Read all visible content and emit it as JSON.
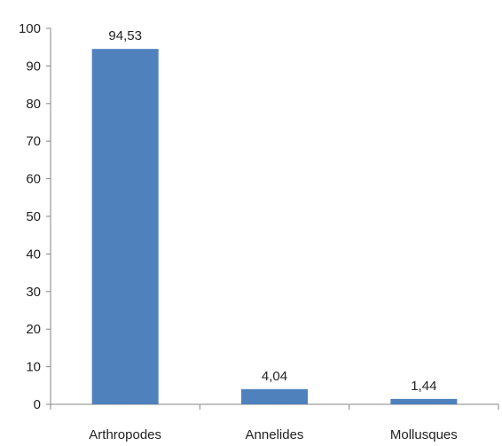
{
  "chart_data": {
    "type": "bar",
    "categories": [
      "Arthropodes",
      "Annelides",
      "Mollusques"
    ],
    "values": [
      94.53,
      4.04,
      1.44
    ],
    "data_labels": [
      "94,53",
      "4,04",
      "1,44"
    ],
    "title": "",
    "xlabel": "",
    "ylabel": "",
    "ylim": [
      0,
      100
    ],
    "yticks": [
      0,
      10,
      20,
      30,
      40,
      50,
      60,
      70,
      80,
      90,
      100
    ],
    "grid": false,
    "legend": "none",
    "bar_color": "#4f81bd"
  }
}
